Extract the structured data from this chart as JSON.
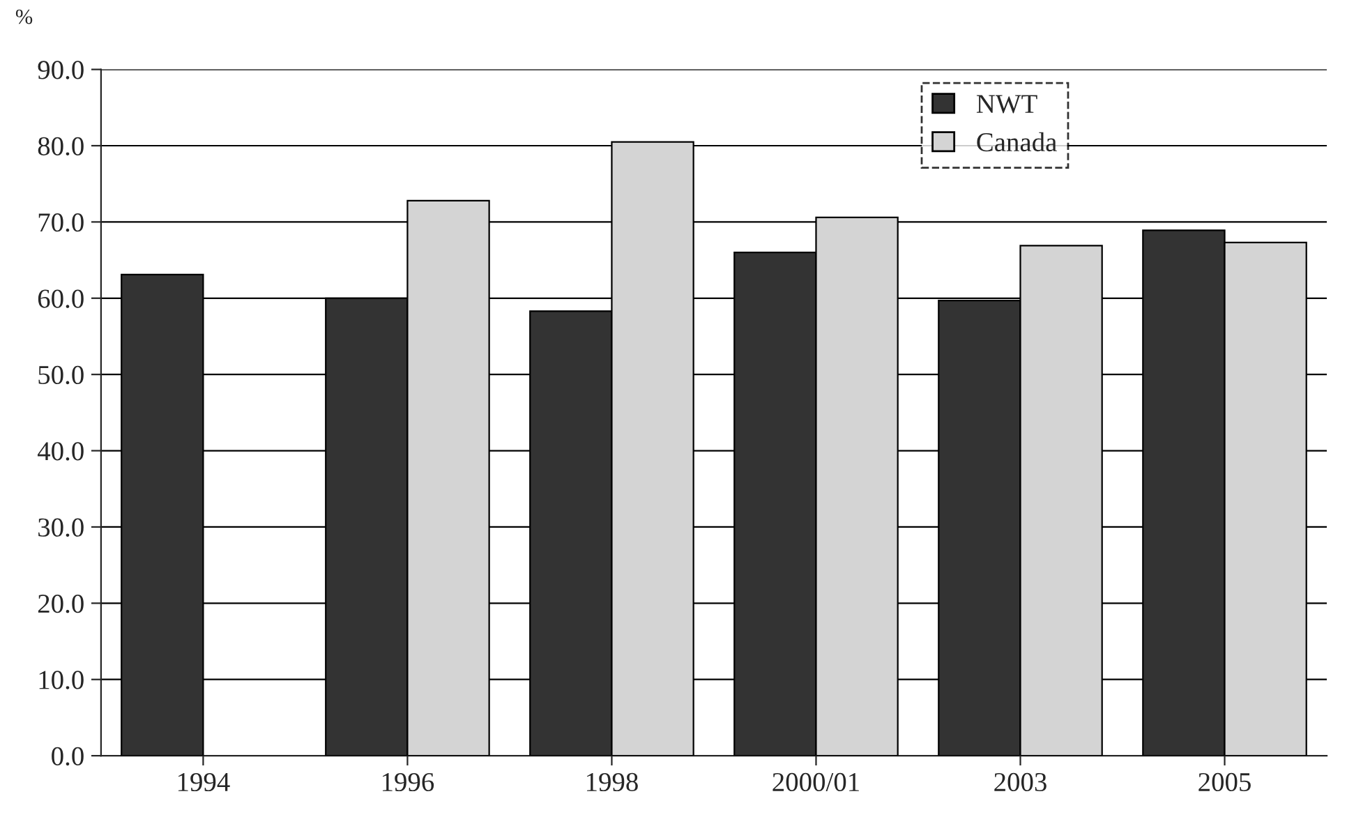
{
  "chart_data": {
    "type": "bar",
    "ylabel": "%",
    "categories": [
      "1994",
      "1996",
      "1998",
      "2000/01",
      "2003",
      "2005"
    ],
    "series": [
      {
        "name": "NWT",
        "color": "#333333",
        "values": [
          63.1,
          60.0,
          58.3,
          66.0,
          59.7,
          68.9
        ]
      },
      {
        "name": "Canada",
        "color": "#d4d4d4",
        "values": [
          null,
          72.8,
          80.5,
          70.6,
          66.9,
          67.3
        ]
      }
    ],
    "ylim": [
      0,
      90
    ],
    "yticks": [
      {
        "value": 0,
        "label": "0.0"
      },
      {
        "value": 10,
        "label": "10.0"
      },
      {
        "value": 20,
        "label": "20.0"
      },
      {
        "value": 30,
        "label": "30.0"
      },
      {
        "value": 40,
        "label": "40.0"
      },
      {
        "value": 50,
        "label": "50.0"
      },
      {
        "value": 60,
        "label": "60.0"
      },
      {
        "value": 70,
        "label": "70.0"
      },
      {
        "value": 80,
        "label": "80.0"
      },
      {
        "value": 90,
        "label": "90.0"
      }
    ],
    "grid": "y",
    "legend": "top right"
  }
}
